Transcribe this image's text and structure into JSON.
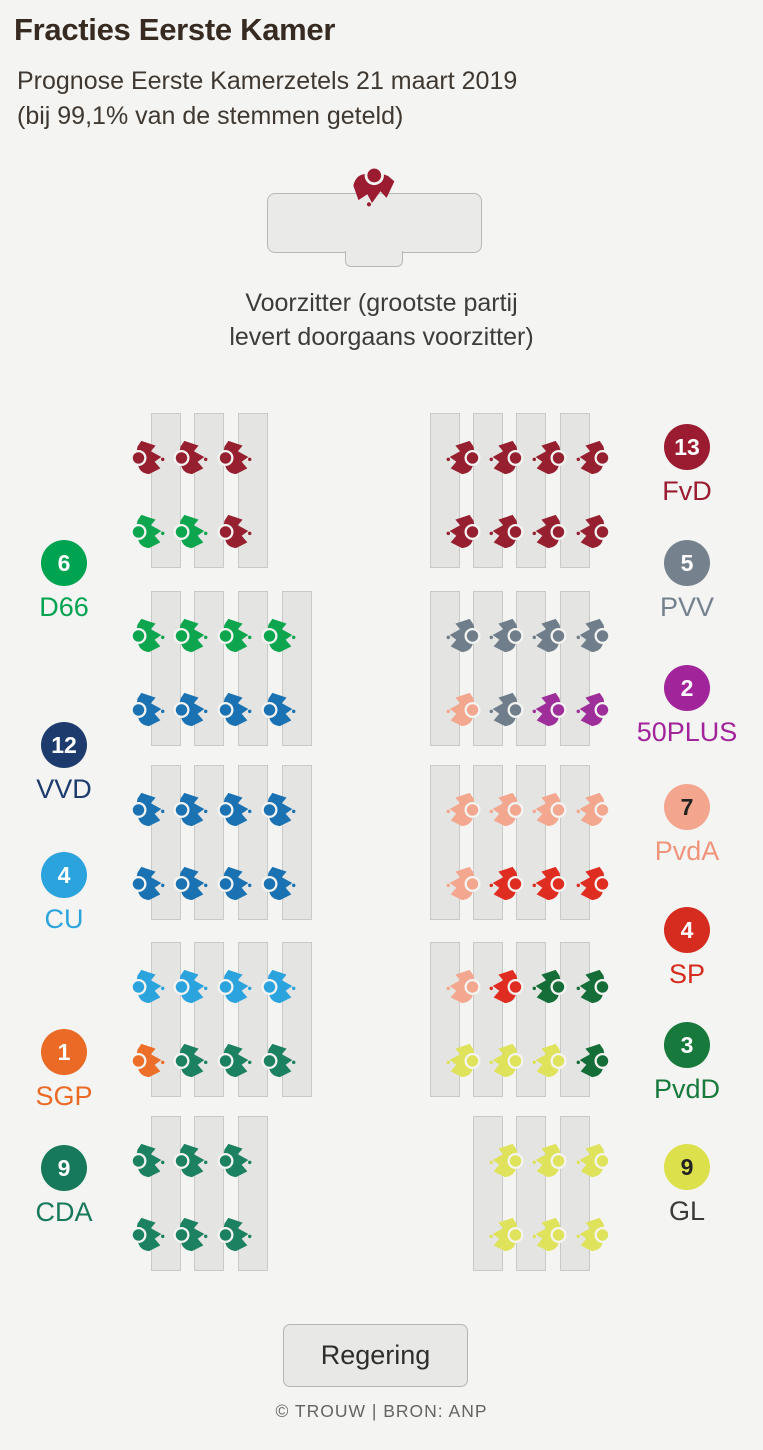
{
  "header": {
    "title": "Fracties Eerste Kamer",
    "subtitle_line1": "Prognose Eerste Kamerzetels 21 maart 2019",
    "subtitle_line2": "(bij 99,1% van de stemmen geteld)"
  },
  "voorzitter": {
    "caption_line1": "Voorzitter (grootste partij",
    "caption_line2": "levert doorgaans voorzitter)",
    "party": "FvD"
  },
  "icons": {
    "seat": "person-at-desk-icon",
    "voorzitter": "voorzitter-person-icon"
  },
  "parties": {
    "FvD": {
      "label": "FvD",
      "color": "#96202F",
      "badge_color": "#9B1C31",
      "badge_text": "#FFFFFF",
      "label_color": "#9B1C31"
    },
    "D66": {
      "label": "D66",
      "color": "#0DA64E",
      "badge_color": "#00A350",
      "badge_text": "#FFFFFF",
      "label_color": "#00A350"
    },
    "VVD": {
      "label": "VVD",
      "color": "#1A72B2",
      "badge_color": "#1D3C6D",
      "badge_text": "#FFFFFF",
      "label_color": "#1D3C6D"
    },
    "CU": {
      "label": "CU",
      "color": "#2BA3DD",
      "badge_color": "#2BA3DD",
      "badge_text": "#FFFFFF",
      "label_color": "#2BA3DD"
    },
    "SGP": {
      "label": "SGP",
      "color": "#EC6E28",
      "badge_color": "#EB6A25",
      "badge_text": "#FFFFFF",
      "label_color": "#EB6A25"
    },
    "CDA": {
      "label": "CDA",
      "color": "#1B8160",
      "badge_color": "#17795B",
      "badge_text": "#FFFFFF",
      "label_color": "#17795B"
    },
    "PVV": {
      "label": "PVV",
      "color": "#6F7E8A",
      "badge_color": "#75828D",
      "badge_text": "#FFFFFF",
      "label_color": "#75828D"
    },
    "50PLUS": {
      "label": "50PLUS",
      "color": "#9E2E9A",
      "badge_color": "#A2249A",
      "badge_text": "#FFFFFF",
      "label_color": "#A2249A"
    },
    "PvdA": {
      "label": "PvdA",
      "color": "#F3A78F",
      "badge_color": "#F4A58E",
      "badge_text": "#222222",
      "label_color": "#F0957B"
    },
    "SP": {
      "label": "SP",
      "color": "#E02D22",
      "badge_color": "#D62C20",
      "badge_text": "#FFFFFF",
      "label_color": "#D62C20"
    },
    "PvdD": {
      "label": "PvdD",
      "color": "#156E38",
      "badge_color": "#17793C",
      "badge_text": "#FFFFFF",
      "label_color": "#17793C"
    },
    "GL": {
      "label": "GL",
      "color": "#DFE35B",
      "badge_color": "#DCE04B",
      "badge_text": "#222222",
      "label_color": "#3A3A3A"
    }
  },
  "legend_left": [
    {
      "party": "D66",
      "count": "6"
    },
    {
      "party": "VVD",
      "count": "12"
    },
    {
      "party": "CU",
      "count": "4"
    },
    {
      "party": "SGP",
      "count": "1"
    },
    {
      "party": "CDA",
      "count": "9"
    }
  ],
  "legend_right": [
    {
      "party": "FvD",
      "count": "13"
    },
    {
      "party": "PVV",
      "count": "5"
    },
    {
      "party": "50PLUS",
      "count": "2"
    },
    {
      "party": "PvdA",
      "count": "7"
    },
    {
      "party": "SP",
      "count": "4"
    },
    {
      "party": "PvdD",
      "count": "3"
    },
    {
      "party": "GL",
      "count": "9"
    }
  ],
  "seating": {
    "left_sections": [
      {
        "desk_slots": [
          0,
          1,
          2
        ],
        "rows": [
          [
            "FvD",
            "FvD",
            "FvD"
          ],
          [
            "D66",
            "D66",
            "FvD"
          ]
        ]
      },
      {
        "desk_slots": [
          0,
          1,
          2,
          3
        ],
        "rows": [
          [
            "D66",
            "D66",
            "D66",
            "D66"
          ],
          [
            "VVD",
            "VVD",
            "VVD",
            "VVD"
          ]
        ]
      },
      {
        "desk_slots": [
          0,
          1,
          2,
          3
        ],
        "rows": [
          [
            "VVD",
            "VVD",
            "VVD",
            "VVD"
          ],
          [
            "VVD",
            "VVD",
            "VVD",
            "VVD"
          ]
        ]
      },
      {
        "desk_slots": [
          0,
          1,
          2,
          3
        ],
        "rows": [
          [
            "CU",
            "CU",
            "CU",
            "CU"
          ],
          [
            "SGP",
            "CDA",
            "CDA",
            "CDA"
          ]
        ]
      },
      {
        "desk_slots": [
          0,
          1,
          2
        ],
        "rows": [
          [
            "CDA",
            "CDA",
            "CDA"
          ],
          [
            "CDA",
            "CDA",
            "CDA"
          ]
        ]
      }
    ],
    "right_sections": [
      {
        "desk_slots": [
          0,
          1,
          2,
          3
        ],
        "rows": [
          [
            "FvD",
            "FvD",
            "FvD",
            "FvD"
          ],
          [
            "FvD",
            "FvD",
            "FvD",
            "FvD"
          ]
        ]
      },
      {
        "desk_slots": [
          0,
          1,
          2,
          3
        ],
        "rows": [
          [
            "PVV",
            "PVV",
            "PVV",
            "PVV"
          ],
          [
            "PvdA",
            "PVV",
            "50PLUS",
            "50PLUS"
          ]
        ]
      },
      {
        "desk_slots": [
          0,
          1,
          2,
          3
        ],
        "rows": [
          [
            "PvdA",
            "PvdA",
            "PvdA",
            "PvdA"
          ],
          [
            "PvdA",
            "SP",
            "SP",
            "SP"
          ]
        ]
      },
      {
        "desk_slots": [
          0,
          1,
          2,
          3
        ],
        "rows": [
          [
            "PvdA",
            "SP",
            "PvdD",
            "PvdD"
          ],
          [
            "GL",
            "GL",
            "GL",
            "PvdD"
          ]
        ]
      },
      {
        "desk_slots": [
          1,
          2,
          3
        ],
        "rows": [
          [
            "GL",
            "GL",
            "GL"
          ],
          [
            "GL",
            "GL",
            "GL"
          ]
        ]
      }
    ]
  },
  "footer": {
    "button_label": "Regering",
    "credit": "© TROUW | BRON: ANP"
  },
  "chart_data": {
    "type": "table",
    "title": "Fracties Eerste Kamer",
    "subtitle": "Prognose Eerste Kamerzetels 21 maart 2019 (bij 99,1% van de stemmen geteld)",
    "categories": [
      "FvD",
      "VVD",
      "CDA",
      "GL",
      "PvdA",
      "D66",
      "PVV",
      "SP",
      "CU",
      "PvdD",
      "50PLUS",
      "SGP"
    ],
    "values": [
      13,
      12,
      9,
      9,
      7,
      6,
      5,
      4,
      4,
      3,
      2,
      1
    ],
    "total_seats": 75,
    "legend_position": "badges left and right of the seating plan",
    "notes": "Seating plan of the Eerste Kamer; the voorzitter seat at top is shown separately and is provided by the largest party (FvD)."
  }
}
